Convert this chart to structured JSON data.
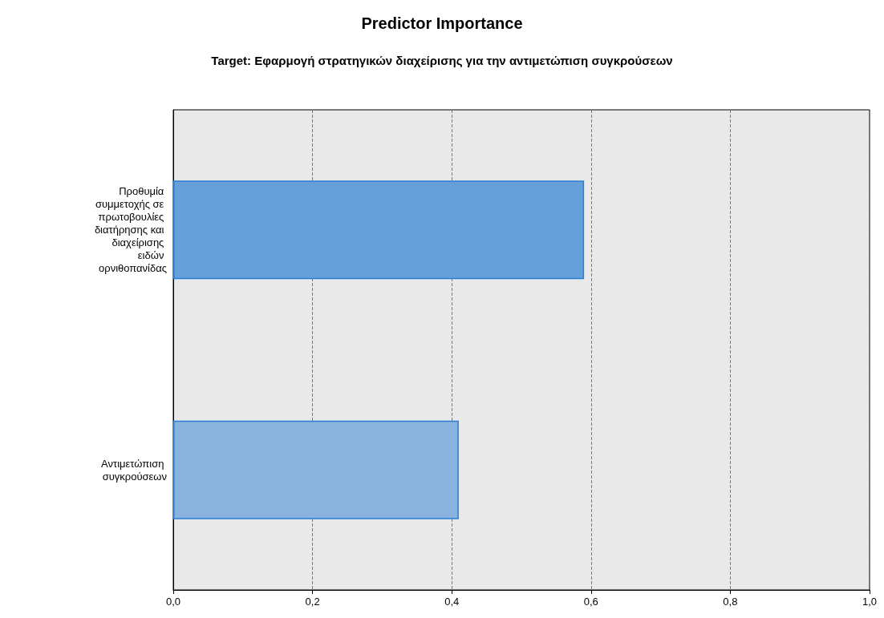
{
  "chart_data": {
    "type": "bar",
    "orientation": "horizontal",
    "title": "Predictor Importance",
    "subtitle": "Target: Εφαρμογή στρατηγικών διαχείρισης για την αντιμετώπιση συγκρούσεων",
    "categories": [
      "Προθυμία συμμετοχής σε πρωτοβουλίες διατήρησης και διαχείρισης ειδών ορνιθοπανίδας",
      "Αντιμετώπιση συγκρούσεων"
    ],
    "values": [
      0.59,
      0.41
    ],
    "colors": [
      "#669fd9",
      "#8ab2de"
    ],
    "xlim": [
      0,
      1
    ],
    "xticks": [
      {
        "value": 0,
        "label": "0,0"
      },
      {
        "value": 0.2,
        "label": "0,2"
      },
      {
        "value": 0.4,
        "label": "0,4"
      },
      {
        "value": 0.6,
        "label": "0,6"
      },
      {
        "value": 0.8,
        "label": "0,8"
      },
      {
        "value": 1,
        "label": "1,0"
      }
    ],
    "grid": "x"
  }
}
